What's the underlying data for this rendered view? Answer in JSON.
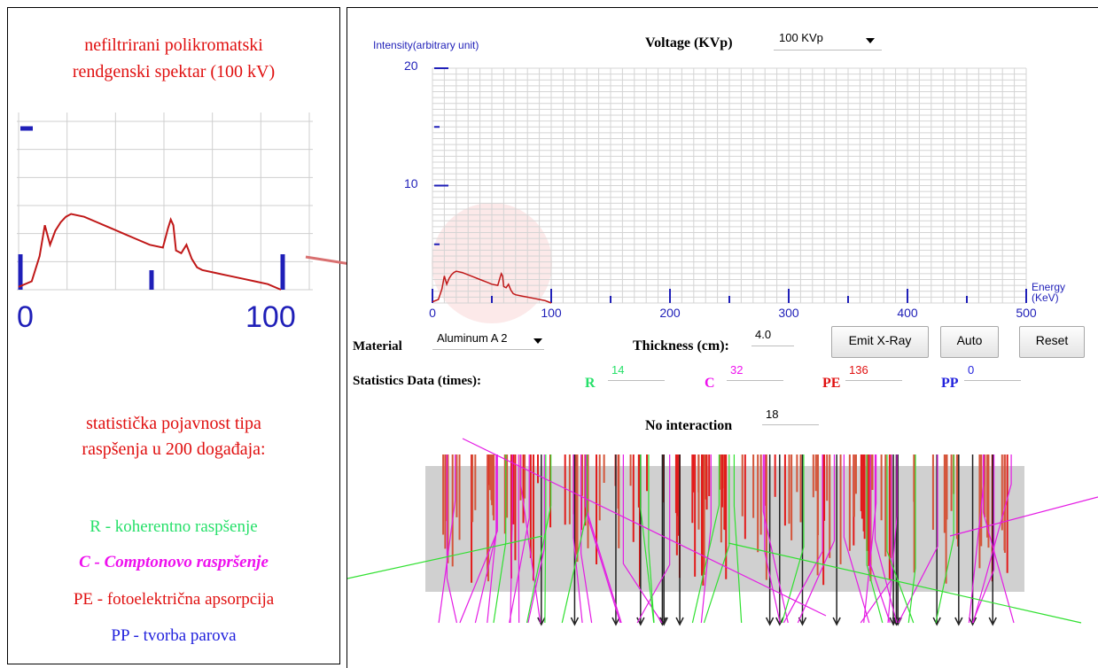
{
  "left_panel": {
    "title_line1": "nefiltrirani polikromatski",
    "title_line2": "rendgenski spektar (100 kV)",
    "mini_axis_min": "0",
    "mini_axis_max": "100",
    "stats_line1": "statistička pojavnost tipa",
    "stats_line2": "raspšenja u 200 događaja:",
    "legend": [
      {
        "text": "R  -  koherentno raspšenje",
        "color": "#27e06a"
      },
      {
        "text": "C - Comptonovo raspršenje",
        "color": "#ee11ee"
      },
      {
        "text": "PE - fotoelektrična apsorpcija",
        "color": "#e01010"
      },
      {
        "text": "PP - tvorba parova",
        "color": "#2222dd"
      }
    ]
  },
  "chart": {
    "ylabel": "Intensity(arbitrary unit)",
    "xlabel_line1": "Energy",
    "xlabel_line2": "(KeV)",
    "y_ticks": [
      "20",
      "10"
    ],
    "x_ticks": [
      "0",
      "100",
      "200",
      "300",
      "400",
      "500"
    ],
    "color_axis": "#1f1fb8",
    "color_curve": "#c01818"
  },
  "chart_data": {
    "type": "line",
    "title": "",
    "xlabel": "Energy (KeV)",
    "ylabel": "Intensity(arbitrary unit)",
    "xlim": [
      0,
      500
    ],
    "ylim": [
      0,
      20
    ],
    "grid": true,
    "series": [
      {
        "x": [
          0,
          5,
          8,
          10,
          12,
          14,
          16,
          18,
          20,
          25,
          30,
          35,
          40,
          45,
          50,
          55,
          57,
          58,
          59,
          60,
          62,
          64,
          66,
          68,
          70,
          75,
          80,
          85,
          90,
          95,
          100
        ],
        "y": [
          0.1,
          0.3,
          1.2,
          2.3,
          1.6,
          2.1,
          2.4,
          2.6,
          2.7,
          2.6,
          2.4,
          2.2,
          2.0,
          1.8,
          1.6,
          1.5,
          2.2,
          2.5,
          2.3,
          1.4,
          1.3,
          1.6,
          1.1,
          0.8,
          0.7,
          0.6,
          0.5,
          0.4,
          0.3,
          0.2,
          0.0
        ]
      }
    ]
  },
  "controls": {
    "voltage_label": "Voltage (KVp)",
    "voltage_value": "100 KVp",
    "material_label": "Material",
    "material_value": "Aluminum A 2",
    "thickness_label": "Thickness (cm):",
    "thickness_value": "4.0",
    "emit_label": "Emit X-Ray",
    "auto_label": "Auto",
    "reset_label": "Reset"
  },
  "stats": {
    "label": "Statistics Data (times):",
    "r_label": "R",
    "r_value": "14",
    "r_color": "#27e06a",
    "c_label": "C",
    "c_value": "32",
    "c_color": "#ee11ee",
    "pe_label": "PE",
    "pe_value": "136",
    "pe_color": "#e01010",
    "pp_label": "PP",
    "pp_value": "0",
    "pp_color": "#2222dd",
    "no_interaction_label": "No interaction",
    "no_interaction_value": "18"
  }
}
